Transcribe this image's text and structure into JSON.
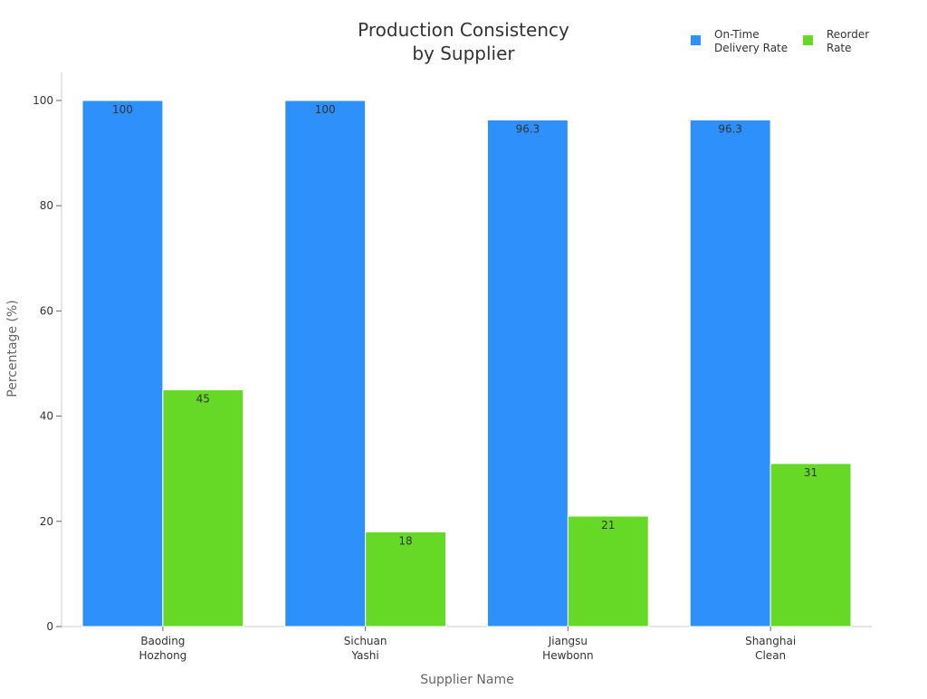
{
  "chart_data": {
    "type": "bar",
    "title": [
      "Production Consistency",
      "by Supplier"
    ],
    "xlabel": "Supplier Name",
    "ylabel": "Percentage (%)",
    "categories": [
      [
        "Baoding",
        "Hozhong"
      ],
      [
        "Sichuan",
        "Yashi"
      ],
      [
        "Jiangsu",
        "Hewbonn"
      ],
      [
        "Shanghai",
        "Clean"
      ]
    ],
    "ylim": [
      0,
      105
    ],
    "yticks": [
      0,
      20,
      40,
      60,
      80,
      100
    ],
    "grid": false,
    "legend_position": "top-right",
    "series": [
      {
        "name": [
          "On-Time",
          "Delivery Rate"
        ],
        "color": "#2e90fa",
        "values": [
          100,
          100,
          96.3,
          96.3
        ],
        "labels": [
          "100",
          "100",
          "96.3",
          "96.3"
        ]
      },
      {
        "name": [
          "Reorder",
          "Rate"
        ],
        "color": "#66d927",
        "values": [
          45,
          18,
          21,
          31
        ],
        "labels": [
          "45",
          "18",
          "21",
          "31"
        ]
      }
    ]
  }
}
